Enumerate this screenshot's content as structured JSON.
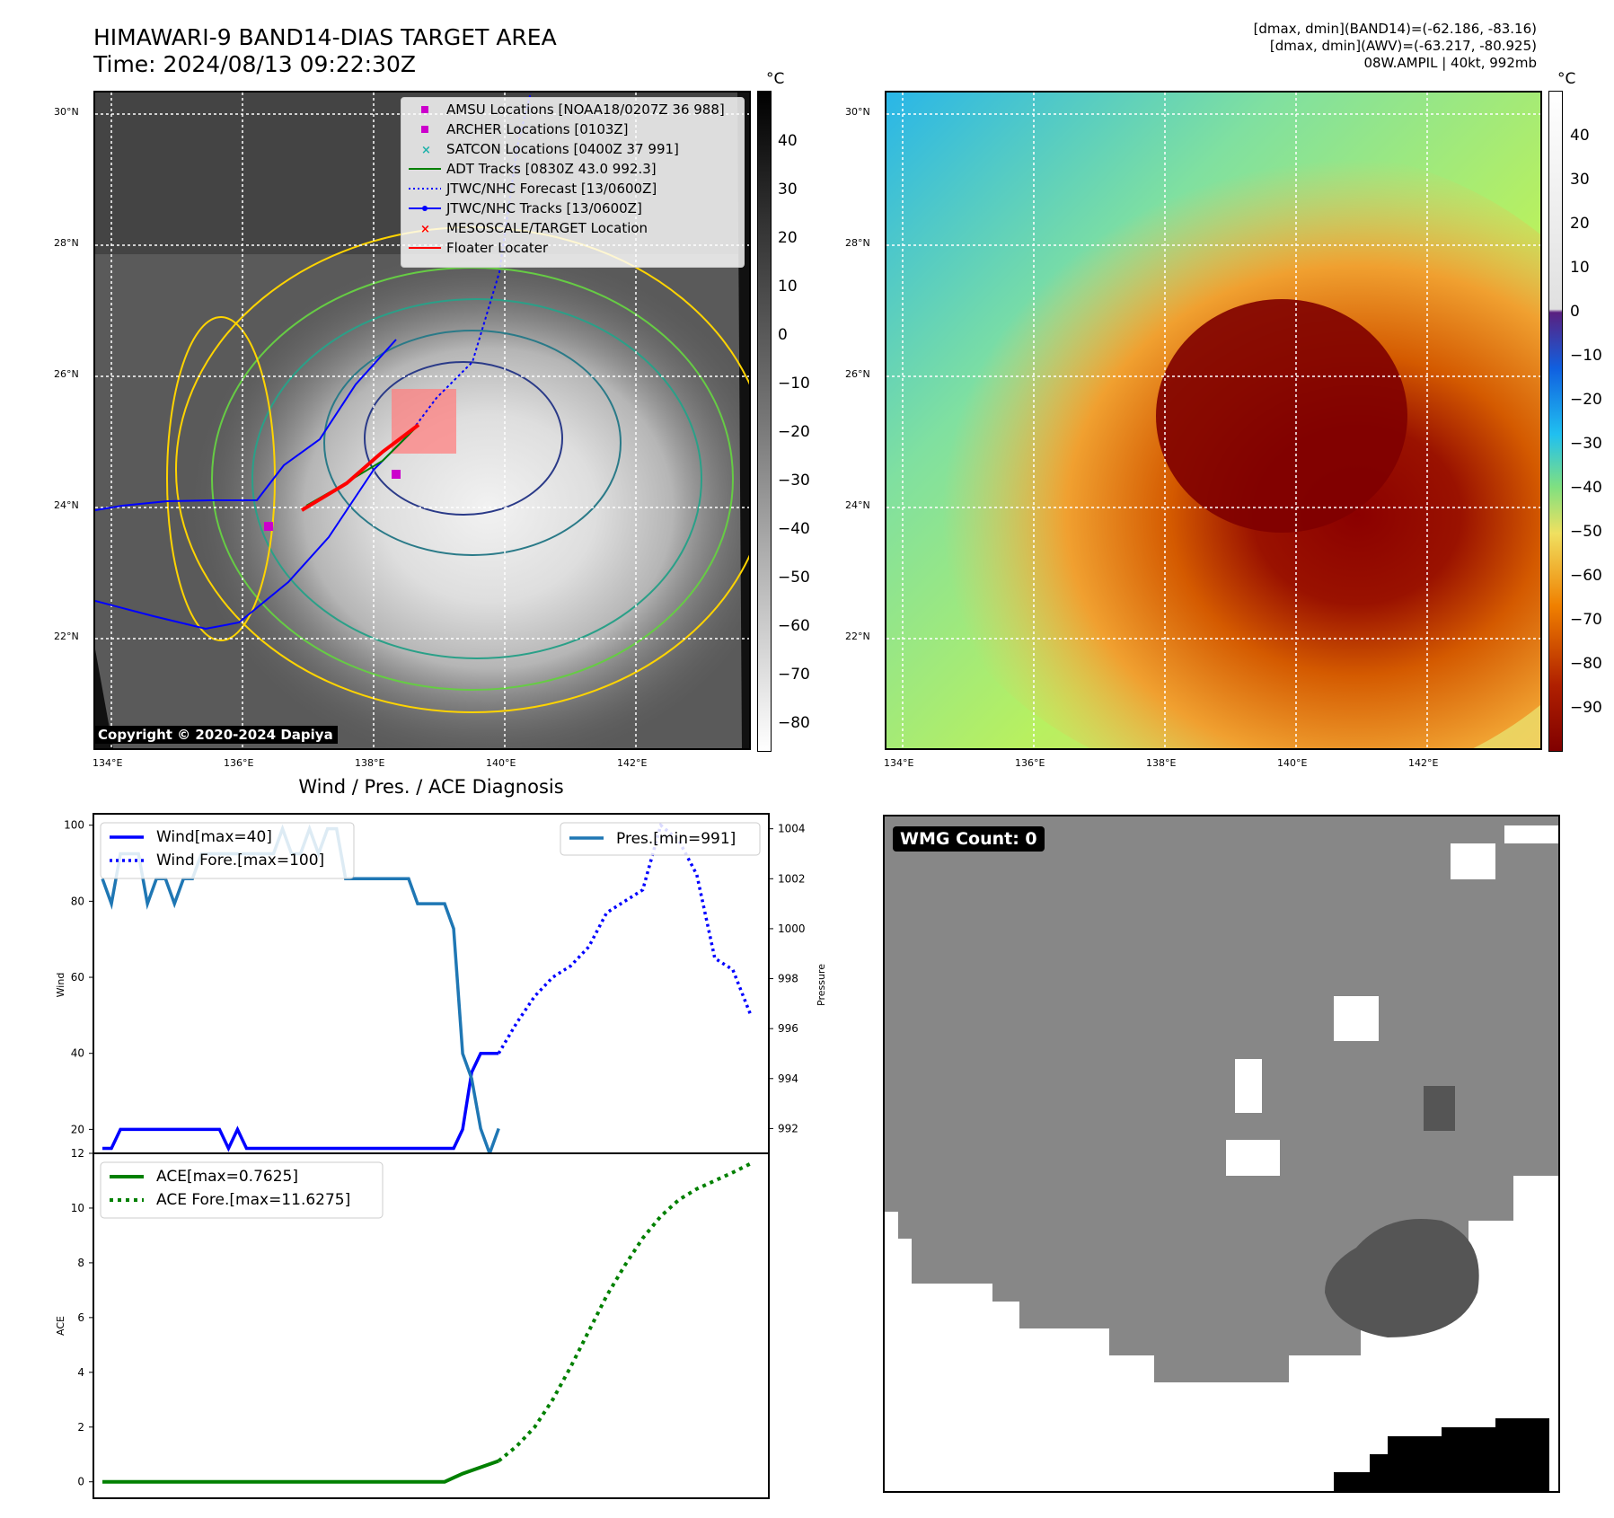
{
  "header": {
    "title_line1": "HIMAWARI-9 BAND14-DIAS TARGET AREA",
    "title_line2": "Time: 2024/08/13 09:22:30Z",
    "info_line1": "[dmax, dmin](BAND14)=(-62.186, -83.16)",
    "info_line2": "[dmax, dmin](AWV)=(-63.217, -80.925)",
    "info_line3": "08W.AMPIL | 40kt, 992mb"
  },
  "map_axes": {
    "lat_labels": [
      "30°N",
      "28°N",
      "26°N",
      "24°N",
      "22°N"
    ],
    "lon_labels": [
      "134°E",
      "136°E",
      "138°E",
      "140°E",
      "142°E"
    ]
  },
  "colorbar_left": {
    "unit": "°C",
    "ticks": [
      "40",
      "30",
      "20",
      "10",
      "0",
      "−10",
      "−20",
      "−30",
      "−40",
      "−50",
      "−60",
      "−70",
      "−80"
    ]
  },
  "colorbar_right": {
    "unit": "°C",
    "ticks": [
      "40",
      "30",
      "20",
      "10",
      "0",
      "−10",
      "−20",
      "−30",
      "−40",
      "−50",
      "−60",
      "−70",
      "−80",
      "−90"
    ]
  },
  "legend_map": {
    "items": [
      {
        "label": "AMSU Locations [NOAA18/0207Z 36 988]",
        "color": "#cc00cc",
        "marker": "square"
      },
      {
        "label": "ARCHER Locations [0103Z]",
        "color": "#cc00cc",
        "marker": "square"
      },
      {
        "label": "SATCON Locations [0400Z 37 991]",
        "color": "#20b2aa",
        "marker": "x"
      },
      {
        "label": "ADT Tracks [0830Z 43.0 992.3]",
        "color": "#008000",
        "marker": "line"
      },
      {
        "label": "JTWC/NHC Forecast [13/0600Z]",
        "color": "#0000ff",
        "marker": "dotted"
      },
      {
        "label": "JTWC/NHC Tracks [13/0600Z]",
        "color": "#0000ff",
        "marker": "line-dot"
      },
      {
        "label": "MESOSCALE/TARGET Location",
        "color": "#ff0000",
        "marker": "x"
      },
      {
        "label": "Floater Locater",
        "color": "#ff0000",
        "marker": "line"
      }
    ]
  },
  "copyright": "Copyright © 2020-2024 Dapiya",
  "diagnosis_title": "Wind / Pres. / ACE Diagnosis",
  "wmg_label": "WMG Count: 0",
  "chart_data": [
    {
      "type": "line",
      "title": "Wind / Pres. / ACE Diagnosis",
      "ylabel": "Wind",
      "ylabel2": "Pressure",
      "ylim": [
        13,
        103
      ],
      "y2lim": [
        990.9,
        1004.6
      ],
      "yticks": [
        20,
        40,
        60,
        80,
        100
      ],
      "y2ticks": [
        992,
        994,
        996,
        998,
        1000,
        1002,
        1004
      ],
      "legend_wind": "Wind[max=40]",
      "legend_wind_fore": "Wind Fore.[max=100]",
      "legend_pres": "Pres.[min=991]",
      "series": [
        {
          "name": "Wind[max=40]",
          "color": "#0000ff",
          "style": "solid",
          "axis": "left",
          "x": [
            0,
            1,
            2,
            3,
            4,
            5,
            6,
            7,
            8,
            9,
            10,
            11,
            12,
            13,
            14,
            15,
            16,
            17,
            18,
            19,
            20,
            21,
            22,
            23,
            24,
            25,
            26,
            27,
            28,
            29,
            30,
            31,
            32,
            33,
            34,
            35,
            36,
            37,
            38,
            39,
            40,
            41,
            42,
            43,
            44
          ],
          "values": [
            15,
            15,
            20,
            20,
            20,
            20,
            20,
            20,
            20,
            20,
            20,
            20,
            20,
            20,
            15,
            20,
            15,
            15,
            15,
            15,
            15,
            15,
            15,
            15,
            15,
            15,
            15,
            15,
            15,
            15,
            15,
            15,
            15,
            15,
            15,
            15,
            15,
            15,
            15,
            15,
            20,
            35,
            40,
            40,
            40
          ]
        },
        {
          "name": "Wind Fore.[max=100]",
          "color": "#0000ff",
          "style": "dotted",
          "axis": "left",
          "x": [
            44,
            46,
            48,
            50,
            52,
            54,
            56,
            58,
            60,
            62,
            64,
            66,
            68,
            70,
            72
          ],
          "values": [
            40,
            48,
            55,
            60,
            63,
            68,
            77,
            80,
            83,
            100,
            96,
            87,
            65,
            62,
            50
          ]
        },
        {
          "name": "Pres.[min=991]",
          "color": "#1f77b4",
          "style": "solid",
          "axis": "right",
          "x": [
            0,
            1,
            2,
            3,
            4,
            5,
            6,
            7,
            8,
            9,
            10,
            11,
            12,
            13,
            14,
            15,
            16,
            17,
            18,
            19,
            20,
            21,
            22,
            23,
            24,
            25,
            26,
            27,
            28,
            29,
            30,
            31,
            32,
            33,
            34,
            35,
            36,
            37,
            38,
            39,
            40,
            41,
            42,
            43,
            44
          ],
          "values": [
            1002,
            1001,
            1003,
            1003,
            1003,
            1001,
            1002,
            1002,
            1001,
            1002,
            1002,
            1003,
            1003,
            1003,
            1003,
            1003,
            1003,
            1003,
            1003,
            1003,
            1004,
            1003,
            1003,
            1004,
            1003,
            1004,
            1004,
            1002,
            1002,
            1002,
            1002,
            1002,
            1002,
            1002,
            1002,
            1001,
            1001,
            1001,
            1001,
            1000,
            995,
            994,
            992,
            991,
            992
          ]
        }
      ]
    },
    {
      "type": "line",
      "ylabel": "ACE",
      "ylim": [
        -0.6,
        12
      ],
      "yticks": [
        0,
        2,
        4,
        6,
        8,
        10,
        12
      ],
      "legend_ace": "ACE[max=0.7625]",
      "legend_ace_fore": "ACE Fore.[max=11.6275]",
      "series": [
        {
          "name": "ACE[max=0.7625]",
          "color": "#008000",
          "style": "solid",
          "x": [
            0,
            38,
            40,
            44
          ],
          "values": [
            0,
            0,
            0.3,
            0.7625
          ]
        },
        {
          "name": "ACE Fore.[max=11.6275]",
          "color": "#008000",
          "style": "dotted",
          "x": [
            44,
            46,
            48,
            50,
            52,
            54,
            56,
            58,
            60,
            62,
            64,
            66,
            68,
            70,
            72
          ],
          "values": [
            0.7625,
            1.3,
            2.0,
            3.0,
            4.2,
            5.5,
            6.8,
            7.9,
            8.9,
            9.7,
            10.3,
            10.7,
            11.0,
            11.3,
            11.6275
          ]
        }
      ]
    }
  ]
}
